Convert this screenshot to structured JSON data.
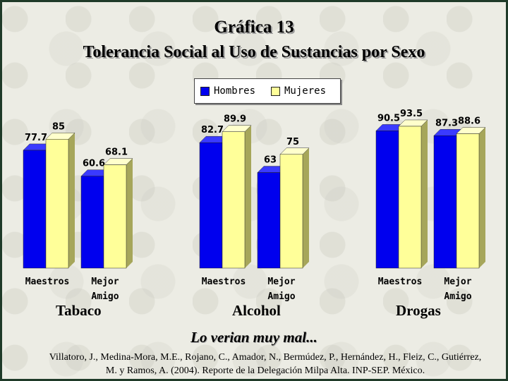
{
  "title": "Gráfica 13",
  "subtitle_chart": "Tolerancia Social al Uso de Sustancias por Sexo",
  "legend": {
    "hombres": "Hombres",
    "mujeres": "Mujeres"
  },
  "footer_caption": "Lo verian muy mal...",
  "citation": "Villatoro, J., Medina-Mora, M.E., Rojano, C., Amador, N., Bermúdez, P., Hernández, H., Fleiz, C., Gutiérrez, M. y Ramos, A. (2004). Reporte de la Delegación Milpa Alta. INP-SEP. México.",
  "colors": {
    "hombres": "#0000ee",
    "mujeres": "#ffff99",
    "background": "#ecece4"
  },
  "chart_data": {
    "type": "bar",
    "title": "Tolerancia Social al Uso de Sustancias por Sexo",
    "groups": [
      "Tabaco",
      "Alcohol",
      "Drogas"
    ],
    "categories": [
      "Maestros",
      "Mejor Amigo"
    ],
    "series": [
      {
        "name": "Hombres",
        "values": [
          [
            77.7,
            60.6
          ],
          [
            82.7,
            63
          ],
          [
            90.5,
            87.3
          ]
        ]
      },
      {
        "name": "Mujeres",
        "values": [
          [
            85,
            68.1
          ],
          [
            89.9,
            75
          ],
          [
            93.5,
            88.6
          ]
        ]
      }
    ],
    "labels": [
      [
        "77.7",
        "60.6",
        "85",
        "68.1"
      ],
      [
        "82.7",
        "63",
        "89.9",
        "75"
      ],
      [
        "90.5",
        "87.3",
        "93.5",
        "88.6"
      ]
    ],
    "ylim": [
      0,
      100
    ],
    "legend_position": "top-center",
    "grid": false
  }
}
